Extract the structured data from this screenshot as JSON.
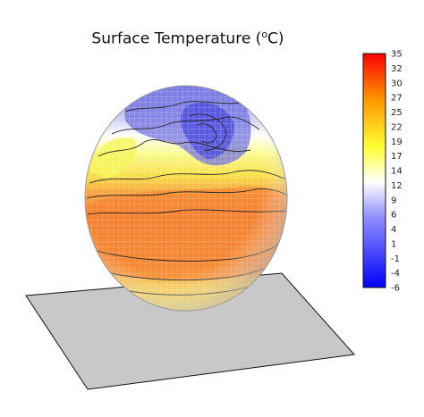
{
  "chart_data": {
    "type": "heatmap",
    "title_prefix": "Surface Temperature (",
    "title_unit_sup": "o",
    "title_suffix": "C)",
    "colorbar": {
      "ticks": [
        35,
        32,
        30,
        27,
        25,
        22,
        19,
        17,
        14,
        12,
        9,
        6,
        4,
        1,
        -1,
        -4,
        -6
      ],
      "range": [
        -6,
        35
      ],
      "colors": [
        "#0000ff",
        "#ffffff",
        "#ffff00",
        "#ff0000"
      ]
    },
    "surface": "sphere",
    "floor": "gray plane",
    "grid": true
  },
  "colors": {
    "floor": "#c8c8c8",
    "contour": "#222222",
    "grid": "#ffffff"
  }
}
